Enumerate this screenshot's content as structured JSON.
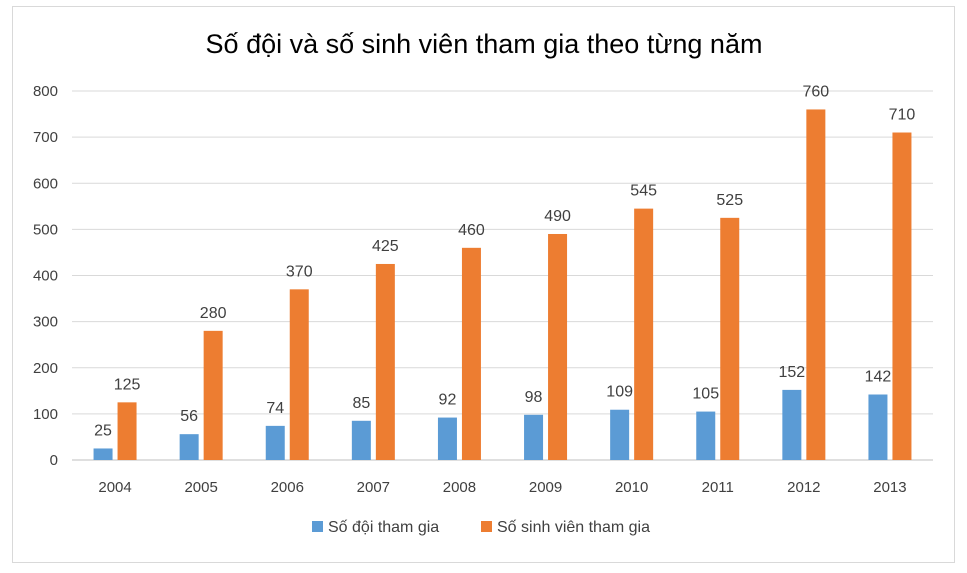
{
  "chart_data": {
    "type": "bar",
    "title": "Số đội và số sinh viên tham gia theo từng năm",
    "categories": [
      "2004",
      "2005",
      "2006",
      "2007",
      "2008",
      "2009",
      "2010",
      "2011",
      "2012",
      "2013"
    ],
    "series": [
      {
        "name": "Số đội tham gia",
        "color": "#5b9bd5",
        "values": [
          25,
          56,
          74,
          85,
          92,
          98,
          109,
          105,
          152,
          142
        ]
      },
      {
        "name": "Số sinh viên tham gia",
        "color": "#ed7d31",
        "values": [
          125,
          280,
          370,
          425,
          460,
          490,
          545,
          525,
          760,
          710
        ]
      }
    ],
    "ylim": [
      0,
      800
    ],
    "yticks": [
      0,
      100,
      200,
      300,
      400,
      500,
      600,
      700,
      800
    ],
    "grid": true,
    "legend_position": "bottom"
  }
}
